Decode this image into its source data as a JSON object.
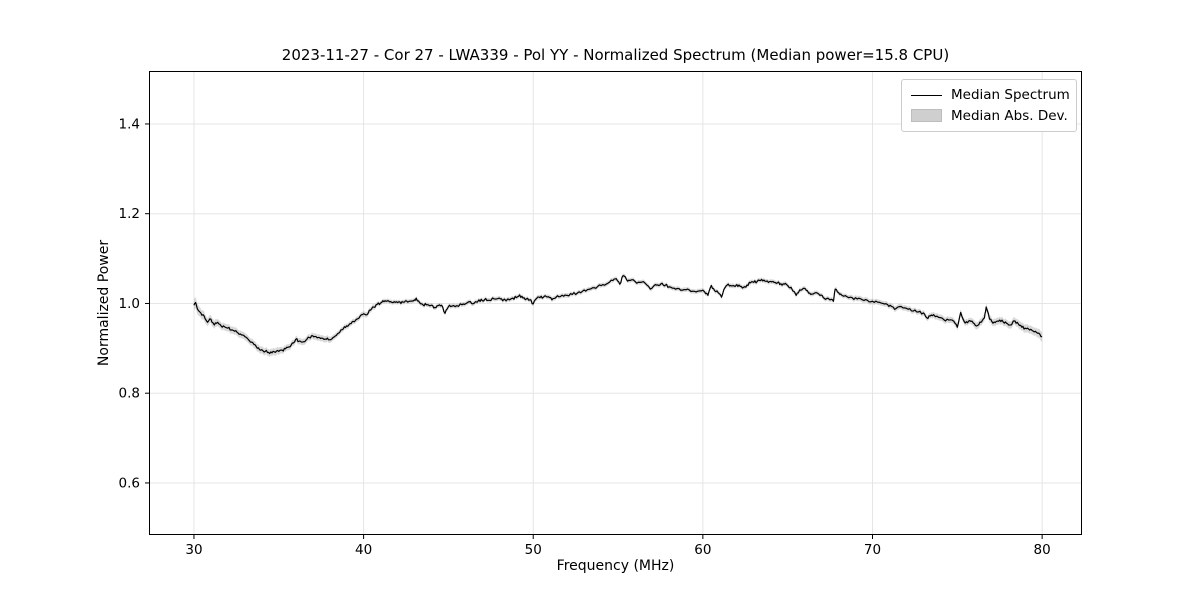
{
  "chart_data": {
    "type": "line",
    "title": "2023-11-27 - Cor 27 - LWA339 - Pol YY - Normalized Spectrum (Median power=15.8 CPU)",
    "xlabel": "Frequency (MHz)",
    "ylabel": "Normalized Power",
    "xlim": [
      27.35,
      82.35
    ],
    "ylim": [
      0.484,
      1.518
    ],
    "xticks": [
      30,
      40,
      50,
      60,
      70,
      80
    ],
    "yticks": [
      0.6,
      0.8,
      1.0,
      1.2,
      1.4
    ],
    "grid": true,
    "grid_color": "#e5e5e5",
    "spine_color": "#000000",
    "line_color": "#000000",
    "band_color": "#aaaaaa",
    "band_opacity": 0.45,
    "noise_amplitude": 0.0032,
    "legend": {
      "position": "upper right",
      "entries": [
        {
          "label": "Median Spectrum",
          "type": "line",
          "color": "#000000"
        },
        {
          "label": "Median Abs. Dev.",
          "type": "patch",
          "color": "#cfcfcf"
        }
      ]
    },
    "series": [
      {
        "name": "Median Spectrum",
        "comment": "points are [frequency_MHz, normalized_power, mad_band_halfwidth]",
        "points_fvh": [
          [
            30.0,
            0.996,
            0.013
          ],
          [
            30.1,
            1.002,
            0.012
          ],
          [
            30.2,
            0.988,
            0.012
          ],
          [
            30.4,
            0.979,
            0.01
          ],
          [
            30.6,
            0.972,
            0.01
          ],
          [
            30.8,
            0.958,
            0.009
          ],
          [
            31.0,
            0.965,
            0.009
          ],
          [
            31.2,
            0.952,
            0.009
          ],
          [
            31.4,
            0.958,
            0.008
          ],
          [
            31.6,
            0.95,
            0.008
          ],
          [
            31.8,
            0.948,
            0.008
          ],
          [
            32.0,
            0.945,
            0.008
          ],
          [
            32.2,
            0.941,
            0.008
          ],
          [
            32.4,
            0.938,
            0.008
          ],
          [
            32.6,
            0.934,
            0.008
          ],
          [
            32.8,
            0.93,
            0.008
          ],
          [
            33.0,
            0.926,
            0.008
          ],
          [
            33.2,
            0.92,
            0.008
          ],
          [
            33.4,
            0.914,
            0.008
          ],
          [
            33.6,
            0.908,
            0.008
          ],
          [
            33.8,
            0.901,
            0.008
          ],
          [
            34.0,
            0.897,
            0.008
          ],
          [
            34.2,
            0.893,
            0.008
          ],
          [
            34.4,
            0.891,
            0.008
          ],
          [
            34.6,
            0.89,
            0.008
          ],
          [
            34.8,
            0.891,
            0.008
          ],
          [
            35.0,
            0.893,
            0.008
          ],
          [
            35.2,
            0.896,
            0.007
          ],
          [
            35.4,
            0.899,
            0.007
          ],
          [
            35.6,
            0.903,
            0.007
          ],
          [
            35.8,
            0.912,
            0.007
          ],
          [
            36.0,
            0.92,
            0.007
          ],
          [
            36.2,
            0.916,
            0.007
          ],
          [
            36.4,
            0.914,
            0.007
          ],
          [
            36.6,
            0.918,
            0.007
          ],
          [
            36.8,
            0.924,
            0.007
          ],
          [
            37.0,
            0.928,
            0.007
          ],
          [
            37.2,
            0.926,
            0.007
          ],
          [
            37.4,
            0.924,
            0.007
          ],
          [
            37.6,
            0.922,
            0.007
          ],
          [
            37.8,
            0.92,
            0.007
          ],
          [
            38.0,
            0.919,
            0.007
          ],
          [
            38.2,
            0.924,
            0.006
          ],
          [
            38.4,
            0.929,
            0.006
          ],
          [
            38.6,
            0.936,
            0.006
          ],
          [
            38.8,
            0.943,
            0.006
          ],
          [
            39.0,
            0.95,
            0.006
          ],
          [
            39.2,
            0.955,
            0.006
          ],
          [
            39.4,
            0.96,
            0.006
          ],
          [
            39.6,
            0.965,
            0.006
          ],
          [
            39.8,
            0.972,
            0.006
          ],
          [
            40.0,
            0.977,
            0.006
          ],
          [
            40.2,
            0.975,
            0.006
          ],
          [
            40.4,
            0.985,
            0.006
          ],
          [
            40.6,
            0.992,
            0.006
          ],
          [
            40.8,
            0.998,
            0.005
          ],
          [
            41.0,
            1.001,
            0.005
          ],
          [
            41.2,
            1.004,
            0.005
          ],
          [
            41.4,
            1.006,
            0.005
          ],
          [
            41.6,
            1.004,
            0.005
          ],
          [
            41.8,
            1.004,
            0.005
          ],
          [
            42.0,
            1.002,
            0.005
          ],
          [
            42.2,
            1.0,
            0.005
          ],
          [
            42.4,
            1.003,
            0.005
          ],
          [
            42.6,
            1.003,
            0.005
          ],
          [
            42.8,
            1.005,
            0.005
          ],
          [
            43.0,
            1.008,
            0.005
          ],
          [
            43.1,
            1.012,
            0.005
          ],
          [
            43.3,
            1.002,
            0.005
          ],
          [
            43.5,
            0.997,
            0.005
          ],
          [
            43.7,
            0.997,
            0.005
          ],
          [
            44.0,
            0.996,
            0.005
          ],
          [
            44.2,
            0.991,
            0.005
          ],
          [
            44.4,
            0.995,
            0.005
          ],
          [
            44.6,
            0.996,
            0.005
          ],
          [
            44.8,
            0.978,
            0.005
          ],
          [
            45.0,
            0.993,
            0.005
          ],
          [
            45.2,
            0.994,
            0.005
          ],
          [
            45.5,
            0.995,
            0.005
          ],
          [
            45.8,
            0.997,
            0.005
          ],
          [
            46.0,
            0.999,
            0.005
          ],
          [
            46.3,
            1.004,
            0.005
          ],
          [
            46.5,
            1.0,
            0.005
          ],
          [
            46.8,
            1.008,
            0.005
          ],
          [
            47.0,
            1.006,
            0.005
          ],
          [
            47.2,
            1.011,
            0.005
          ],
          [
            47.4,
            1.007,
            0.005
          ],
          [
            47.7,
            1.01,
            0.005
          ],
          [
            48.0,
            1.012,
            0.005
          ],
          [
            48.2,
            1.006,
            0.005
          ],
          [
            48.5,
            1.01,
            0.005
          ],
          [
            48.8,
            1.012,
            0.005
          ],
          [
            49.0,
            1.013,
            0.005
          ],
          [
            49.2,
            1.019,
            0.005
          ],
          [
            49.4,
            1.012,
            0.005
          ],
          [
            49.6,
            1.01,
            0.005
          ],
          [
            49.8,
            1.008,
            0.005
          ],
          [
            50.0,
            0.999,
            0.005
          ],
          [
            50.2,
            1.011,
            0.005
          ],
          [
            50.4,
            1.013,
            0.005
          ],
          [
            50.6,
            1.014,
            0.005
          ],
          [
            50.9,
            1.015,
            0.005
          ],
          [
            51.1,
            1.008,
            0.005
          ],
          [
            51.3,
            1.012,
            0.005
          ],
          [
            51.5,
            1.015,
            0.005
          ],
          [
            51.8,
            1.016,
            0.005
          ],
          [
            52.0,
            1.018,
            0.005
          ],
          [
            52.3,
            1.02,
            0.005
          ],
          [
            52.6,
            1.023,
            0.005
          ],
          [
            52.9,
            1.027,
            0.005
          ],
          [
            53.2,
            1.031,
            0.005
          ],
          [
            53.5,
            1.035,
            0.005
          ],
          [
            53.8,
            1.038,
            0.005
          ],
          [
            54.1,
            1.042,
            0.005
          ],
          [
            54.4,
            1.045,
            0.005
          ],
          [
            54.7,
            1.051,
            0.005
          ],
          [
            54.9,
            1.055,
            0.005
          ],
          [
            55.1,
            1.043,
            0.005
          ],
          [
            55.3,
            1.062,
            0.005
          ],
          [
            55.5,
            1.053,
            0.005
          ],
          [
            55.7,
            1.051,
            0.005
          ],
          [
            56.0,
            1.049,
            0.005
          ],
          [
            56.3,
            1.047,
            0.005
          ],
          [
            56.6,
            1.045,
            0.005
          ],
          [
            56.9,
            1.032,
            0.005
          ],
          [
            57.2,
            1.042,
            0.005
          ],
          [
            57.4,
            1.04,
            0.005
          ],
          [
            57.6,
            1.045,
            0.005
          ],
          [
            57.8,
            1.041,
            0.005
          ],
          [
            58.0,
            1.037,
            0.005
          ],
          [
            58.3,
            1.034,
            0.005
          ],
          [
            58.6,
            1.033,
            0.005
          ],
          [
            58.9,
            1.031,
            0.005
          ],
          [
            59.2,
            1.03,
            0.005
          ],
          [
            59.5,
            1.027,
            0.005
          ],
          [
            59.8,
            1.028,
            0.005
          ],
          [
            60.1,
            1.026,
            0.005
          ],
          [
            60.3,
            1.018,
            0.005
          ],
          [
            60.5,
            1.04,
            0.005
          ],
          [
            60.7,
            1.028,
            0.005
          ],
          [
            60.9,
            1.024,
            0.005
          ],
          [
            61.1,
            1.014,
            0.005
          ],
          [
            61.3,
            1.035,
            0.005
          ],
          [
            61.5,
            1.043,
            0.005
          ],
          [
            61.7,
            1.039,
            0.005
          ],
          [
            62.0,
            1.042,
            0.005
          ],
          [
            62.2,
            1.038,
            0.005
          ],
          [
            62.4,
            1.036,
            0.005
          ],
          [
            62.6,
            1.041,
            0.005
          ],
          [
            62.8,
            1.046,
            0.005
          ],
          [
            63.0,
            1.047,
            0.005
          ],
          [
            63.2,
            1.049,
            0.005
          ],
          [
            63.4,
            1.051,
            0.005
          ],
          [
            63.6,
            1.052,
            0.005
          ],
          [
            63.8,
            1.05,
            0.005
          ],
          [
            64.0,
            1.049,
            0.005
          ],
          [
            64.2,
            1.047,
            0.005
          ],
          [
            64.4,
            1.046,
            0.005
          ],
          [
            64.6,
            1.044,
            0.005
          ],
          [
            64.8,
            1.043,
            0.005
          ],
          [
            65.0,
            1.04,
            0.005
          ],
          [
            65.2,
            1.036,
            0.005
          ],
          [
            65.5,
            1.018,
            0.005
          ],
          [
            65.7,
            1.03,
            0.005
          ],
          [
            65.9,
            1.033,
            0.005
          ],
          [
            66.1,
            1.029,
            0.005
          ],
          [
            66.3,
            1.023,
            0.005
          ],
          [
            66.5,
            1.021,
            0.005
          ],
          [
            66.7,
            1.024,
            0.005
          ],
          [
            66.9,
            1.018,
            0.005
          ],
          [
            67.1,
            1.013,
            0.005
          ],
          [
            67.3,
            1.011,
            0.005
          ],
          [
            67.5,
            1.008,
            0.005
          ],
          [
            67.7,
            1.005,
            0.005
          ],
          [
            67.8,
            1.032,
            0.005
          ],
          [
            68.0,
            1.024,
            0.005
          ],
          [
            68.2,
            1.018,
            0.005
          ],
          [
            68.5,
            1.015,
            0.005
          ],
          [
            68.8,
            1.013,
            0.006
          ],
          [
            69.1,
            1.01,
            0.006
          ],
          [
            69.4,
            1.008,
            0.006
          ],
          [
            69.7,
            1.007,
            0.006
          ],
          [
            70.0,
            1.005,
            0.006
          ],
          [
            70.3,
            1.003,
            0.006
          ],
          [
            70.6,
            1.0,
            0.006
          ],
          [
            70.9,
            0.997,
            0.006
          ],
          [
            71.1,
            0.994,
            0.006
          ],
          [
            71.3,
            0.987,
            0.006
          ],
          [
            71.5,
            0.992,
            0.006
          ],
          [
            71.8,
            0.99,
            0.006
          ],
          [
            72.1,
            0.987,
            0.006
          ],
          [
            72.4,
            0.983,
            0.006
          ],
          [
            72.7,
            0.981,
            0.006
          ],
          [
            73.0,
            0.979,
            0.006
          ],
          [
            73.2,
            0.968,
            0.006
          ],
          [
            73.4,
            0.972,
            0.006
          ],
          [
            73.6,
            0.975,
            0.007
          ],
          [
            73.9,
            0.969,
            0.007
          ],
          [
            74.2,
            0.964,
            0.007
          ],
          [
            74.5,
            0.963,
            0.007
          ],
          [
            74.8,
            0.96,
            0.007
          ],
          [
            75.0,
            0.947,
            0.007
          ],
          [
            75.2,
            0.98,
            0.007
          ],
          [
            75.4,
            0.96,
            0.007
          ],
          [
            75.6,
            0.957,
            0.007
          ],
          [
            75.8,
            0.96,
            0.007
          ],
          [
            76.0,
            0.955,
            0.008
          ],
          [
            76.2,
            0.951,
            0.008
          ],
          [
            76.4,
            0.958,
            0.008
          ],
          [
            76.6,
            0.968,
            0.008
          ],
          [
            76.7,
            0.992,
            0.008
          ],
          [
            76.9,
            0.965,
            0.008
          ],
          [
            77.1,
            0.956,
            0.008
          ],
          [
            77.3,
            0.96,
            0.008
          ],
          [
            77.5,
            0.963,
            0.008
          ],
          [
            77.7,
            0.959,
            0.008
          ],
          [
            77.9,
            0.956,
            0.008
          ],
          [
            78.1,
            0.952,
            0.008
          ],
          [
            78.4,
            0.961,
            0.008
          ],
          [
            78.6,
            0.954,
            0.009
          ],
          [
            78.8,
            0.947,
            0.009
          ],
          [
            79.0,
            0.945,
            0.009
          ],
          [
            79.2,
            0.943,
            0.009
          ],
          [
            79.4,
            0.94,
            0.009
          ],
          [
            79.6,
            0.938,
            0.009
          ],
          [
            79.8,
            0.934,
            0.01
          ],
          [
            80.0,
            0.926,
            0.011
          ]
        ]
      }
    ]
  }
}
